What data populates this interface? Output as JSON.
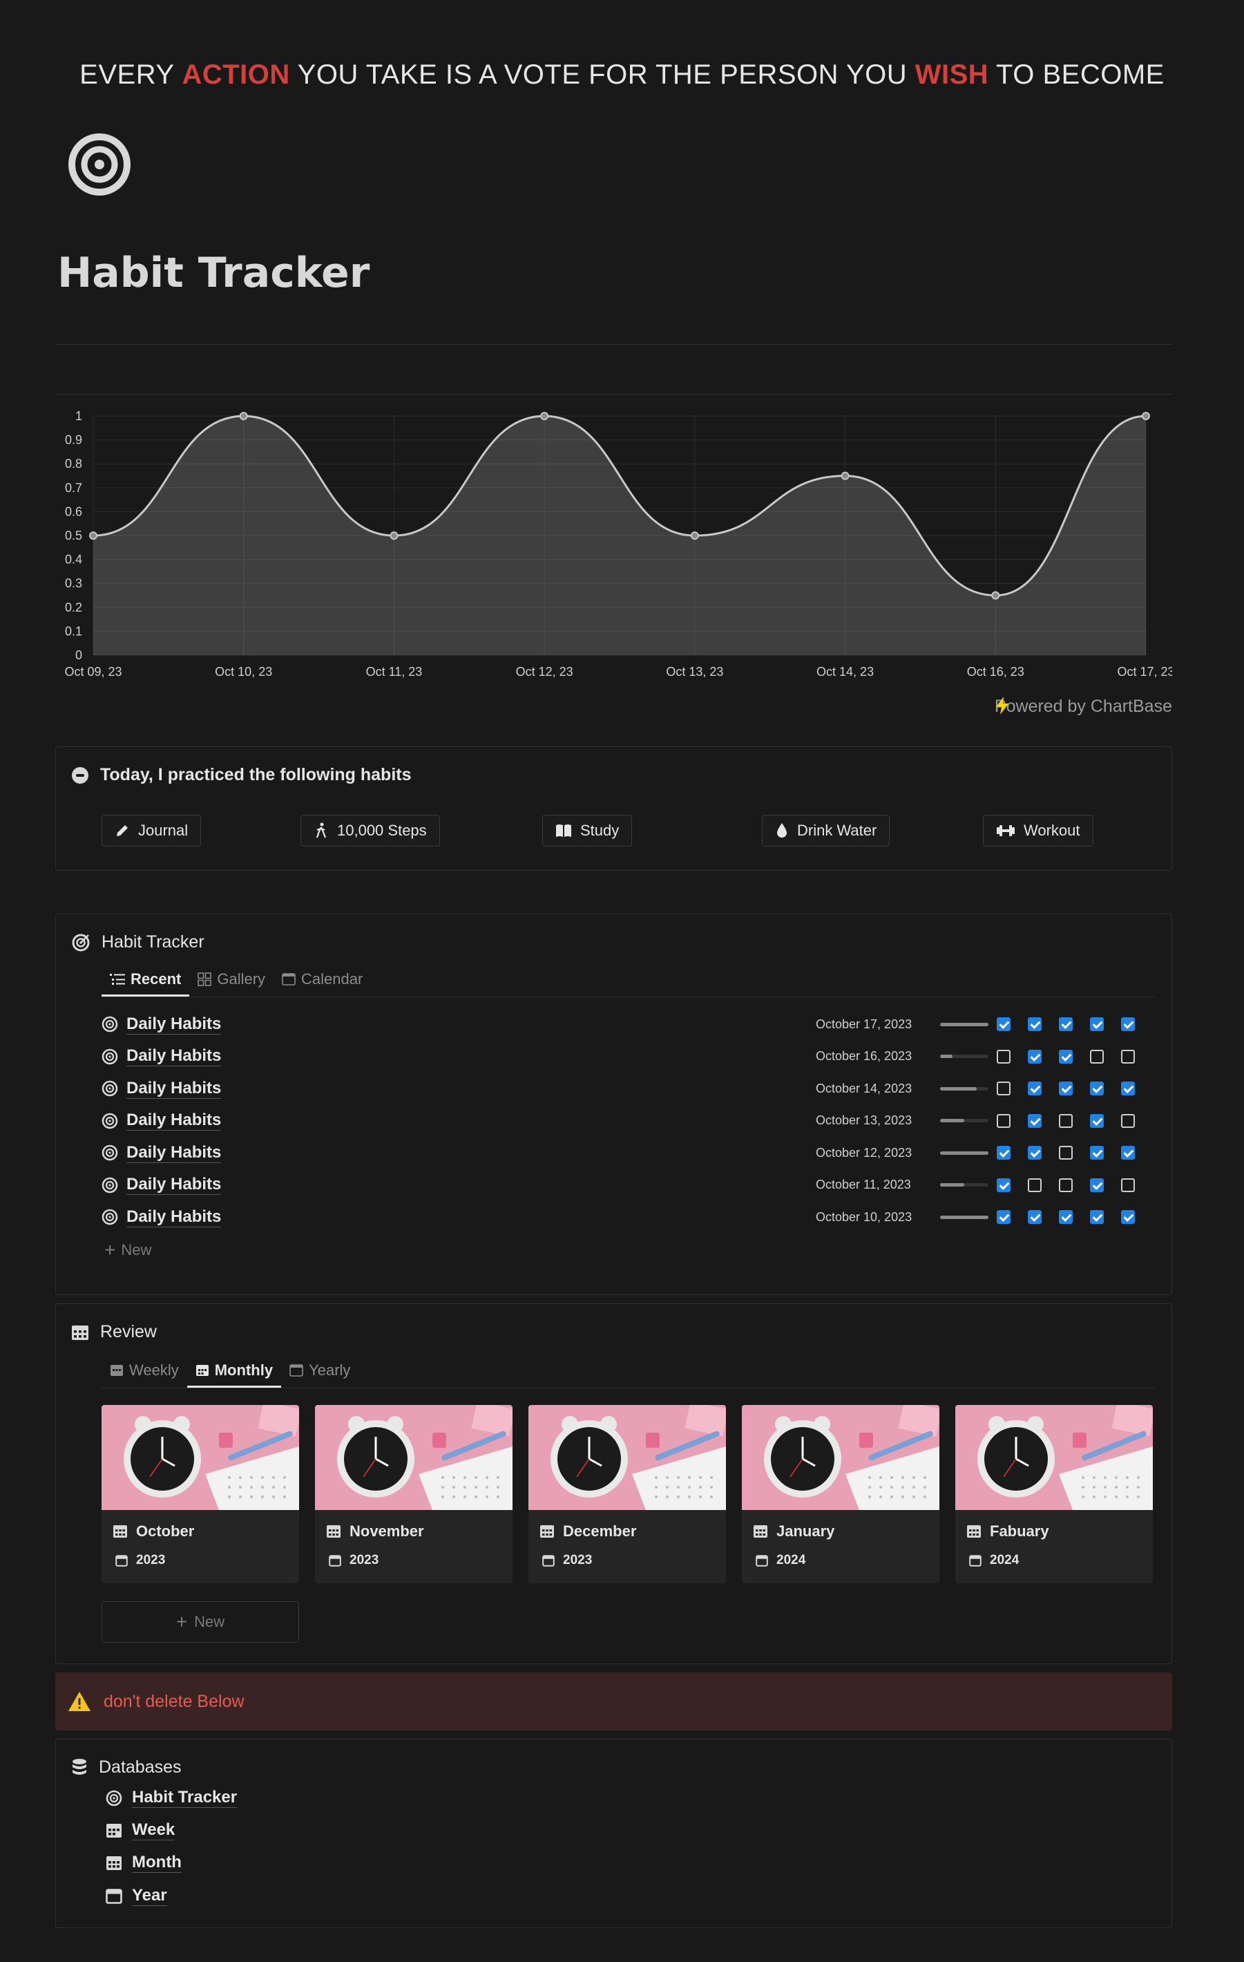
{
  "quote": {
    "part1": "EVERY ",
    "hl1": "ACTION",
    "part2": " YOU TAKE IS A VOTE FOR THE PERSON YOU ",
    "hl2": "WISH",
    "part3": " TO BECOME"
  },
  "page": {
    "title": "Habit Tracker",
    "icon": "target-icon"
  },
  "chart_data": {
    "type": "area",
    "x": [
      "Oct 09, 23",
      "Oct 10, 23",
      "Oct 11, 23",
      "Oct 12, 23",
      "Oct 13, 23",
      "Oct 14, 23",
      "Oct 16, 23",
      "Oct 17, 23"
    ],
    "values": [
      0.5,
      1,
      0.5,
      1,
      0.5,
      0.75,
      0.25,
      1
    ],
    "ylim": [
      0,
      1
    ],
    "yticks": [
      "1",
      "0.9",
      "0.8",
      "0.7",
      "0.6",
      "0.5",
      "0.4",
      "0.3",
      "0.2",
      "0.1",
      "0"
    ],
    "grid": true,
    "title": "",
    "xlabel": "",
    "ylabel": "",
    "powered_by": "Powered by ChartBase"
  },
  "practice": {
    "title": "Today, I practiced the following habits",
    "buttons": [
      {
        "label": "Journal",
        "icon": "pencil-icon"
      },
      {
        "label": "10,000 Steps",
        "icon": "walking-icon"
      },
      {
        "label": "Study",
        "icon": "book-icon"
      },
      {
        "label": "Drink Water",
        "icon": "droplet-icon"
      },
      {
        "label": "Workout",
        "icon": "dumbbell-icon"
      }
    ]
  },
  "tracker": {
    "title": "Habit Tracker",
    "tabs": [
      "Recent",
      "Gallery",
      "Calendar"
    ],
    "rows": [
      {
        "name": "Daily Habits",
        "date": "October 17, 2023",
        "progress": 1.0,
        "checks": [
          true,
          true,
          true,
          true,
          true
        ]
      },
      {
        "name": "Daily Habits",
        "date": "October 16, 2023",
        "progress": 0.25,
        "checks": [
          false,
          true,
          true,
          false,
          false
        ]
      },
      {
        "name": "Daily Habits",
        "date": "October 14, 2023",
        "progress": 0.75,
        "checks": [
          false,
          true,
          true,
          true,
          true
        ]
      },
      {
        "name": "Daily Habits",
        "date": "October 13, 2023",
        "progress": 0.5,
        "checks": [
          false,
          true,
          false,
          true,
          false
        ]
      },
      {
        "name": "Daily Habits",
        "date": "October 12, 2023",
        "progress": 1.0,
        "checks": [
          true,
          true,
          false,
          true,
          true
        ]
      },
      {
        "name": "Daily Habits",
        "date": "October 11, 2023",
        "progress": 0.5,
        "checks": [
          true,
          false,
          false,
          true,
          false
        ]
      },
      {
        "name": "Daily Habits",
        "date": "October 10, 2023",
        "progress": 1.0,
        "checks": [
          true,
          true,
          true,
          true,
          true
        ]
      }
    ],
    "new_label": "New"
  },
  "review": {
    "title": "Review",
    "tabs": [
      "Weekly",
      "Monthly",
      "Yearly"
    ],
    "cards": [
      {
        "month": "October",
        "year": "2023"
      },
      {
        "month": "November",
        "year": "2023"
      },
      {
        "month": "December",
        "year": "2023"
      },
      {
        "month": "January",
        "year": "2024"
      },
      {
        "month": "Fabuary",
        "year": "2024"
      }
    ],
    "new_label": "New"
  },
  "callout": {
    "text": "don't delete Below",
    "icon": "warning-icon"
  },
  "databases": {
    "title": "Databases",
    "items": [
      {
        "label": "Habit Tracker",
        "icon": "target-icon"
      },
      {
        "label": "Week",
        "icon": "calendar-icon"
      },
      {
        "label": "Month",
        "icon": "calendar-icon"
      },
      {
        "label": "Year",
        "icon": "calendar-icon"
      }
    ]
  },
  "colors": {
    "background": "#191919",
    "accent_red": "#d4403a",
    "checkbox_blue": "#2383e2",
    "callout_bg": "#3a2423"
  }
}
